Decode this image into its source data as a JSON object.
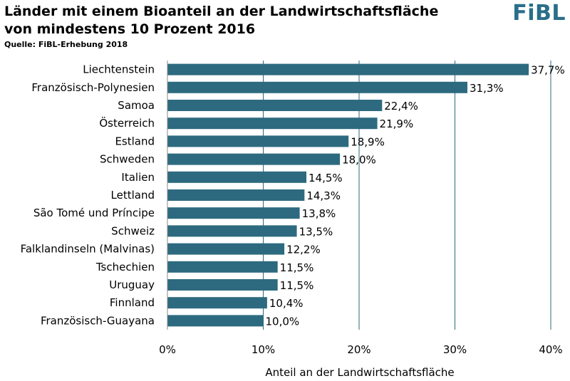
{
  "header": {
    "title_line1": "Länder mit einem Bioanteil an der Landwirtschaftsfläche",
    "title_line2": "von mindestens 10 Prozent 2016",
    "source": "Quelle: FiBL-Erhebung 2018",
    "logo_text": "FiBL"
  },
  "colors": {
    "bar": "#2d6a7f",
    "logo": "#2a6e8a",
    "gridline": "#2d6a7f",
    "axis": "#888888"
  },
  "chart_data": {
    "type": "bar",
    "orientation": "horizontal",
    "categories": [
      "Liechtenstein",
      "Französisch-Polynesien",
      "Samoa",
      "Österreich",
      "Estland",
      "Schweden",
      "Italien",
      "Lettland",
      "São Tomé und Príncipe",
      "Schweiz",
      "Falklandinseln (Malvinas)",
      "Tschechien",
      "Uruguay",
      "Finnland",
      "Französisch-Guayana"
    ],
    "values": [
      37.7,
      31.3,
      22.4,
      21.9,
      18.9,
      18.0,
      14.5,
      14.3,
      13.8,
      13.5,
      12.2,
      11.5,
      11.5,
      10.4,
      10.0
    ],
    "data_labels": [
      "37,7%",
      "31,3%",
      "22,4%",
      "21,9%",
      "18,9%",
      "18,0%",
      "14,5%",
      "14,3%",
      "13,8%",
      "13,5%",
      "12,2%",
      "11,5%",
      "11,5%",
      "10,4%",
      "10,0%"
    ],
    "xlim": [
      0,
      40
    ],
    "xticks": [
      0,
      10,
      20,
      30,
      40
    ],
    "xtick_labels": [
      "0%",
      "10%",
      "20%",
      "30%",
      "40%"
    ],
    "xlabel": "Anteil an der Landwirtschaftsfläche",
    "ylabel": "",
    "grid": true,
    "legend": "none"
  }
}
